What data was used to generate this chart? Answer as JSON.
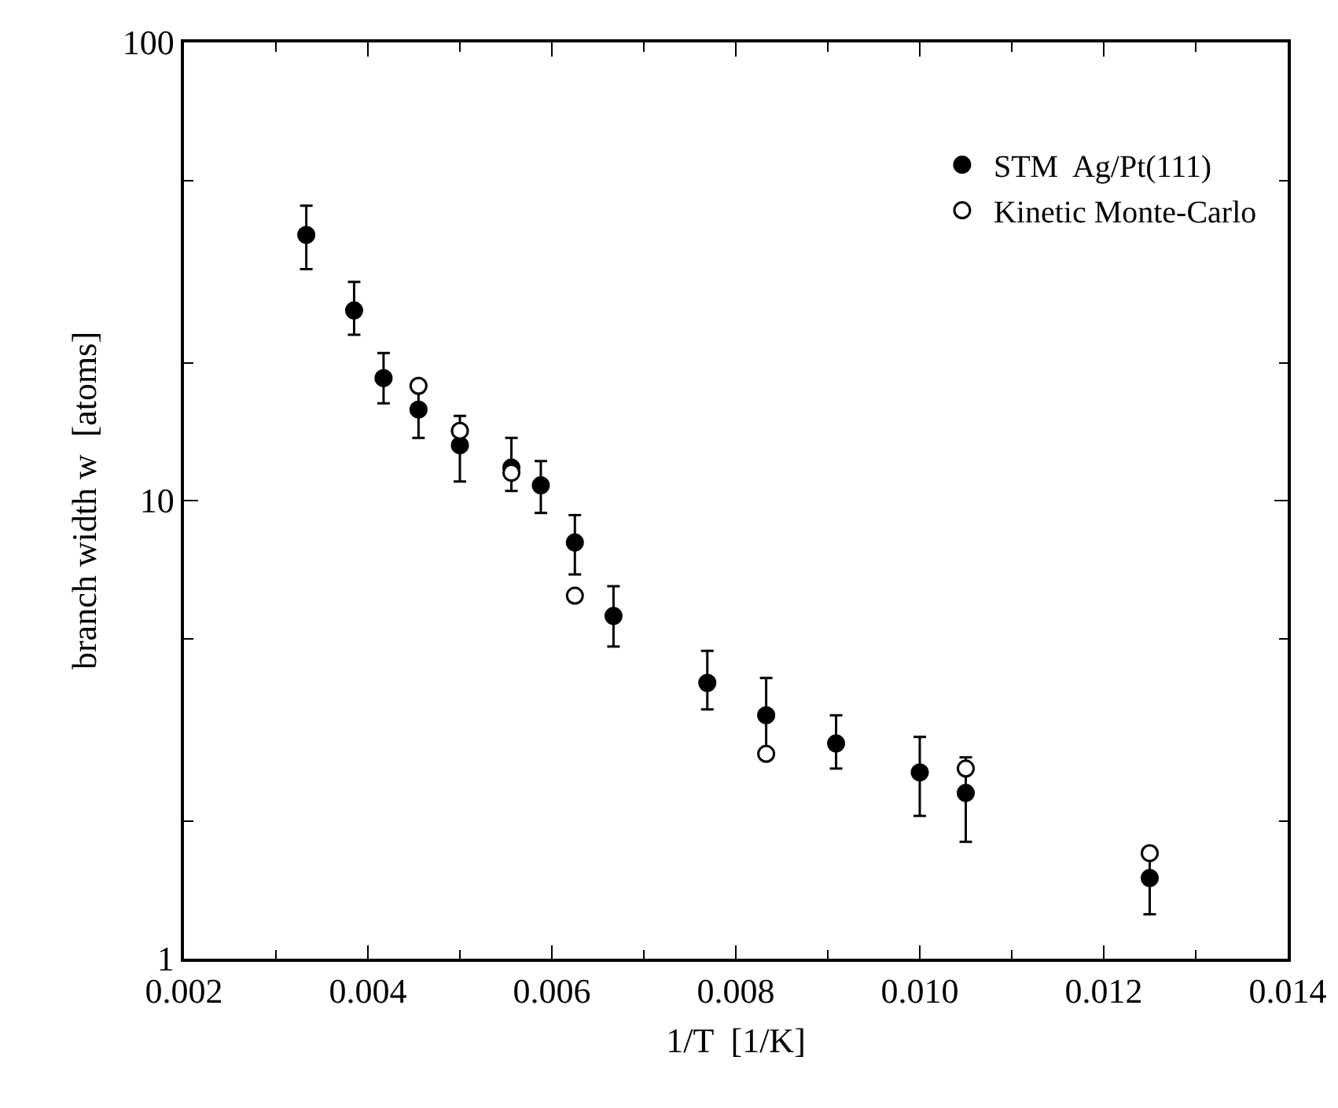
{
  "chart_data": {
    "type": "scatter",
    "xlabel": "1/T  [1/K]",
    "ylabel": "branch width w  [atoms]",
    "log": "y",
    "xlim": [
      0.002,
      0.014
    ],
    "xticks": [
      {
        "value": 0.002,
        "label": "0.002"
      },
      {
        "value": 0.004,
        "label": "0.004"
      },
      {
        "value": 0.006,
        "label": "0.006"
      },
      {
        "value": 0.008,
        "label": "0.008"
      },
      {
        "value": 0.01,
        "label": "0.010"
      },
      {
        "value": 0.012,
        "label": "0.012"
      },
      {
        "value": 0.014,
        "label": "0.014"
      }
    ],
    "ylim": [
      1,
      100
    ],
    "yticks": [
      1,
      10,
      100
    ],
    "grid": false,
    "legend": "top right",
    "series": [
      {
        "name": "STM  Ag/Pt(111)",
        "color": "#000000",
        "marker": "circle",
        "x": [
          0.00333,
          0.00385,
          0.00417,
          0.00455,
          0.005,
          0.00556,
          0.00588,
          0.00625,
          0.00667,
          0.00769,
          0.00833,
          0.00909,
          0.01,
          0.0105,
          0.0125
        ],
        "values": [
          38,
          26,
          18.5,
          15.8,
          13.2,
          11.8,
          10.8,
          8.1,
          5.6,
          4.0,
          3.4,
          2.95,
          2.55,
          2.3,
          1.5
        ],
        "errors": [
          [
            32,
            44
          ],
          [
            23,
            30
          ],
          [
            16.3,
            21
          ],
          [
            13.7,
            18
          ],
          [
            11,
            15.3
          ],
          [
            10.5,
            13.7
          ],
          [
            9.4,
            12.2
          ],
          [
            6.9,
            9.3
          ],
          [
            4.8,
            6.5
          ],
          [
            3.5,
            4.7
          ],
          [
            2.8,
            4.1
          ],
          [
            2.6,
            3.4
          ],
          [
            2.05,
            3.05
          ],
          [
            1.8,
            2.75
          ],
          [
            1.25,
            1.7
          ]
        ]
      },
      {
        "name": "Kinetic Monte-Carlo",
        "color": "#ffffff",
        "marker": "circle",
        "x": [
          0.00455,
          0.005,
          0.00556,
          0.00625,
          0.00833,
          0.0105,
          0.0125
        ],
        "values": [
          17.8,
          14.2,
          11.5,
          6.2,
          2.8,
          2.6,
          1.7
        ]
      }
    ]
  }
}
